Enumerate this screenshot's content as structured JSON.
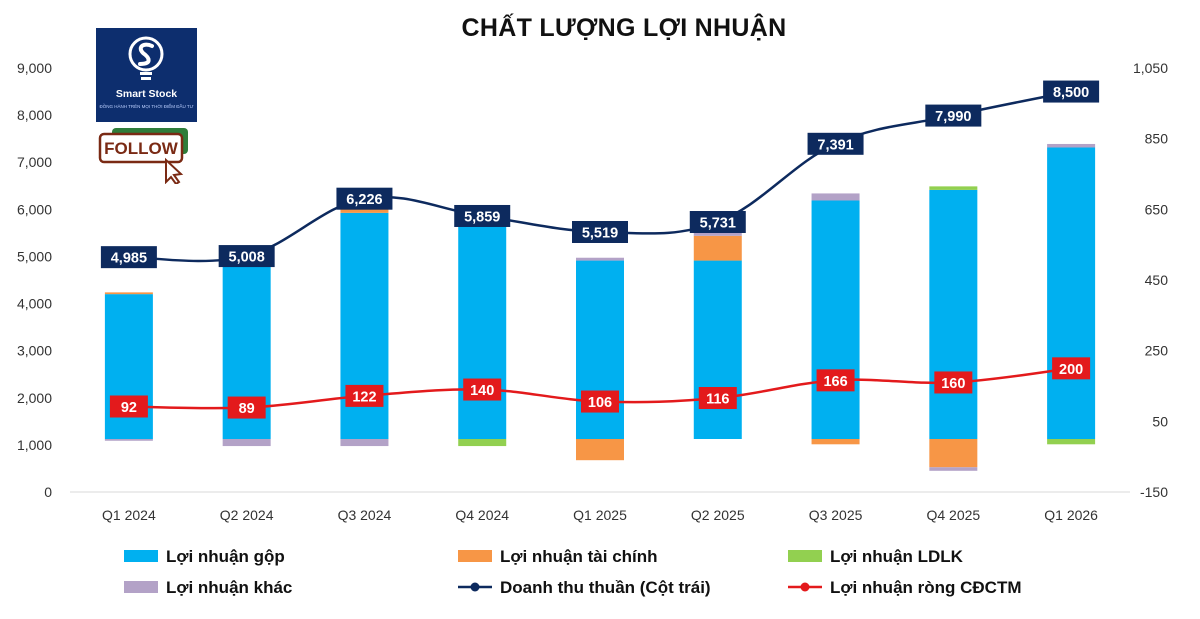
{
  "chart_data": {
    "type": "bar+line",
    "title": "CHẤT LƯỢNG LỢI NHUẬN",
    "categories": [
      "Q1 2024",
      "Q2 2024",
      "Q3 2024",
      "Q4 2024",
      "Q1 2025",
      "Q2 2025",
      "Q3 2025",
      "Q4 2025",
      "Q1 2026"
    ],
    "left_axis": {
      "min": 0,
      "max": 9000,
      "ticks": [
        "0",
        "1,000",
        "2,000",
        "3,000",
        "4,000",
        "5,000",
        "6,000",
        "7,000",
        "8,000",
        "9,000"
      ]
    },
    "right_axis": {
      "min": -150,
      "max": 1050,
      "ticks": [
        "-150",
        "50",
        "250",
        "450",
        "650",
        "850",
        "1,050"
      ]
    },
    "grid": false,
    "legend_position": "bottom",
    "stacked_series": [
      {
        "name": "Lợi nhuận gộp",
        "color": "#00b0f0",
        "values": [
          410,
          490,
          640,
          630,
          505,
          505,
          675,
          705,
          825
        ]
      },
      {
        "name": "Lợi nhuận tài chính",
        "color": "#f79646",
        "values": [
          5,
          0,
          50,
          0,
          -60,
          70,
          -15,
          -80,
          0
        ]
      },
      {
        "name": "Lợi nhuận LDLK",
        "color": "#92d050",
        "values": [
          0,
          8,
          0,
          -20,
          0,
          0,
          0,
          10,
          -15
        ]
      },
      {
        "name": "Lợi nhuận khác",
        "color": "#b3a2c7",
        "values": [
          -5,
          -20,
          -20,
          0,
          8,
          12,
          20,
          -10,
          10
        ]
      }
    ],
    "line_series": [
      {
        "name": "Doanh thu thuần (Cột trái)",
        "axis": "left",
        "color": "#0d2a5e",
        "values": [
          4985,
          5008,
          6226,
          5859,
          5519,
          5731,
          7391,
          7990,
          8500
        ],
        "labels": [
          "4,985",
          "5,008",
          "6,226",
          "5,859",
          "5,519",
          "5,731",
          "7,391",
          "7,990",
          "8,500"
        ]
      },
      {
        "name": "Lợi nhuận ròng CĐCTM",
        "axis": "right",
        "color": "#e31a1c",
        "values": [
          92,
          89,
          122,
          140,
          106,
          116,
          166,
          160,
          200
        ],
        "labels": [
          "92",
          "89",
          "122",
          "140",
          "106",
          "116",
          "166",
          "160",
          "200"
        ]
      }
    ]
  },
  "logo": {
    "name": "Smart Stock",
    "tagline": "ĐỒNG HÀNH TRÊN MỌI THỜI ĐIỂM ĐẦU TƯ",
    "follow": "FOLLOW"
  }
}
